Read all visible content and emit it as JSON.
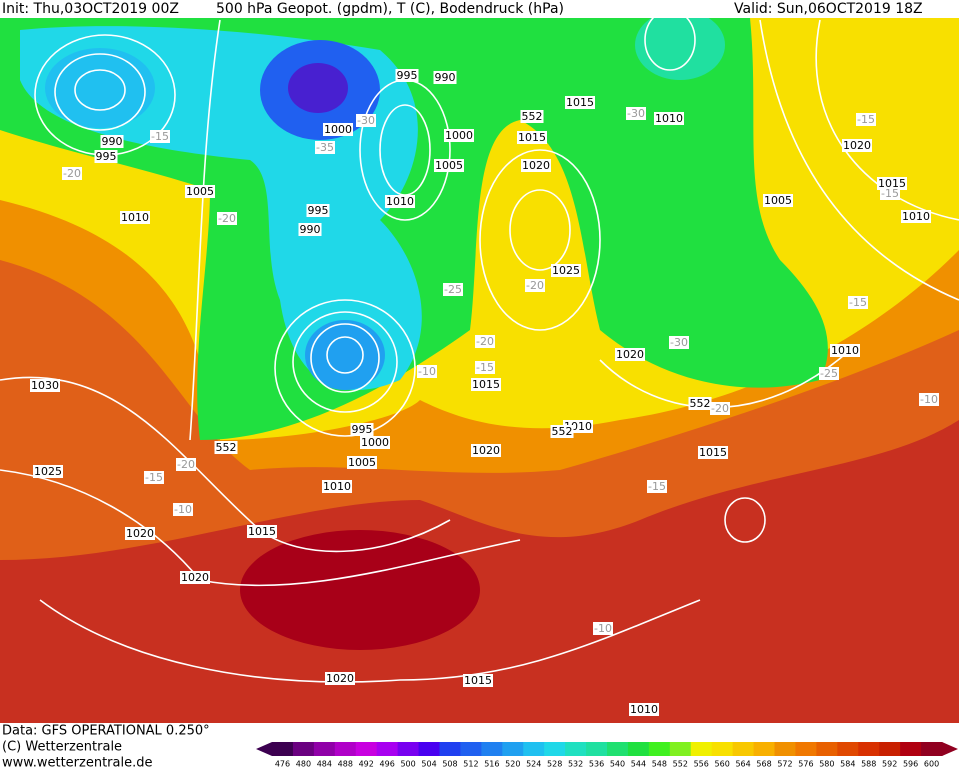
{
  "header": {
    "init": "Init: Thu,03OCT2019 00Z",
    "title": "500 hPa Geopot. (gpdm), T (C), Bodendruck (hPa)",
    "valid": "Valid: Sun,06OCT2019 18Z"
  },
  "footer": {
    "source": "Data: GFS OPERATIONAL 0.250°",
    "copyright": "(C) Wetterzentrale",
    "url": "www.wetterzentrale.de"
  },
  "isobar_labels": [
    "995",
    "990",
    "1005",
    "1010",
    "1030",
    "1025",
    "1020",
    "1015",
    "1010",
    "1005",
    "1000",
    "995",
    "1020",
    "1020",
    "1015",
    "1010",
    "1020",
    "1015",
    "1010",
    "1015",
    "1020",
    "1010",
    "1025",
    "1020",
    "1015",
    "1015",
    "1010",
    "1005",
    "1010",
    "1015",
    "1020",
    "1000",
    "995",
    "990",
    "1000",
    "1005",
    "1010",
    "995",
    "990",
    "552",
    "552",
    "552",
    "552"
  ],
  "temperature_labels": [
    "-15",
    "-20",
    "-20",
    "-30",
    "-35",
    "-25",
    "-20",
    "-20",
    "-15",
    "-10",
    "-20",
    "-15",
    "-10",
    "-30",
    "-30",
    "-25",
    "-20",
    "-15",
    "-15",
    "-15",
    "-10",
    "-15",
    "-10"
  ],
  "colorbar": {
    "levels": [
      476,
      480,
      484,
      488,
      492,
      496,
      500,
      504,
      508,
      512,
      516,
      520,
      524,
      528,
      532,
      536,
      540,
      544,
      548,
      552,
      556,
      560,
      564,
      568,
      572,
      576,
      580,
      584,
      588,
      592,
      596,
      600
    ],
    "colors": [
      "#3c0050",
      "#6a0080",
      "#9000a8",
      "#b000c8",
      "#c800e0",
      "#a800f0",
      "#7800f0",
      "#4800f0",
      "#2040f0",
      "#2060f0",
      "#2080f0",
      "#20a0f0",
      "#20c0f0",
      "#20d8e8",
      "#20e0c0",
      "#20e0a0",
      "#20e070",
      "#20e040",
      "#40f020",
      "#80f020",
      "#f0f000",
      "#f8e000",
      "#f8c800",
      "#f8b000",
      "#f09000",
      "#f07800",
      "#e86000",
      "#e04800",
      "#d83000",
      "#c82000",
      "#b00010",
      "#900020"
    ]
  }
}
